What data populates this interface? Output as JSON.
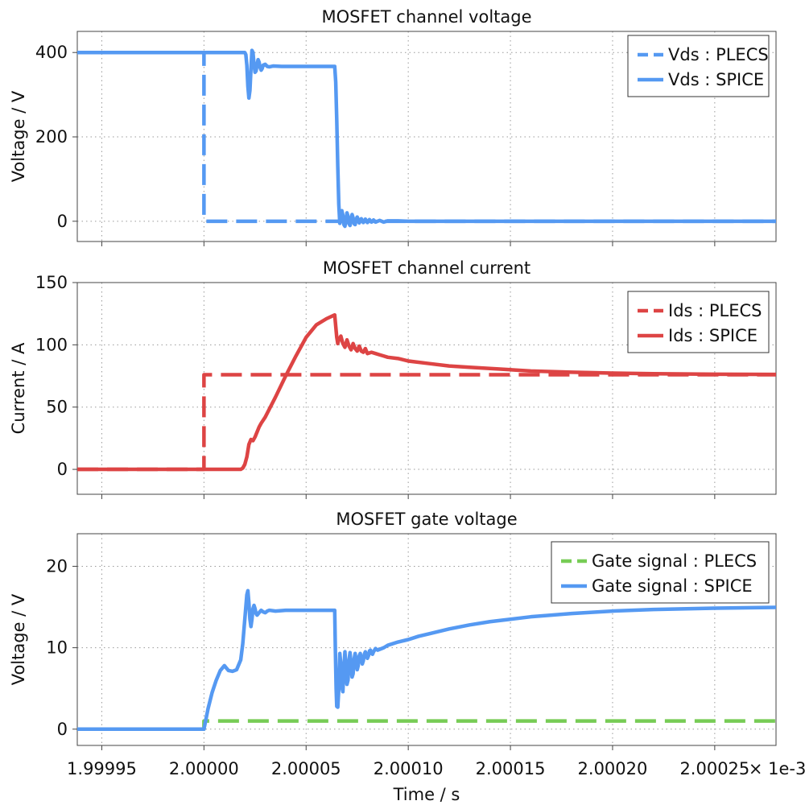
{
  "colors": {
    "blue": "#5599f2",
    "red": "#dd4444",
    "green": "#77cc55"
  },
  "xaxis": {
    "label": "Time / s",
    "range": [
      1.999938,
      2.00028
    ],
    "ticks": [
      1.99995,
      2.0,
      2.00005,
      2.0001,
      2.00015,
      2.0002,
      2.00025
    ],
    "tick_labels": [
      "1.99995",
      "2.00000",
      "2.00005",
      "2.00010",
      "2.00015",
      "2.00020",
      "2.00025"
    ],
    "scale_note": "× 1e-3"
  },
  "chart_data": [
    {
      "type": "line",
      "title": "MOSFET channel voltage",
      "ylabel": "Voltage / V",
      "ylim": [
        -48,
        450
      ],
      "yticks": [
        0,
        200,
        400
      ],
      "ytick_labels": [
        "0",
        "200",
        "400"
      ],
      "grid": true,
      "legend": "top-right",
      "series": [
        {
          "name": "Vds : PLECS",
          "color": "#5599f2",
          "dash": true,
          "x": [
            1.999938,
            2.0,
            2.0,
            2.00028
          ],
          "y": [
            400,
            400,
            0,
            0
          ]
        },
        {
          "name": "Vds : SPICE",
          "color": "#5599f2",
          "dash": false,
          "x": [
            1.999938,
            2.00002,
            2.0000205,
            2.000021,
            2.0000215,
            2.000022,
            2.0000225,
            2.000023,
            2.0000235,
            2.000024,
            2.0000245,
            2.000025,
            2.0000255,
            2.000026,
            2.0000265,
            2.000027,
            2.0000275,
            2.000028,
            2.0000285,
            2.000029,
            2.00003,
            2.000031,
            2.000032,
            2.000034,
            2.000038,
            2.000064,
            2.0000645,
            2.000065,
            2.0000655,
            2.000066,
            2.0000665,
            2.000067,
            2.0000675,
            2.000068,
            2.0000685,
            2.000069,
            2.0000695,
            2.00007,
            2.0000705,
            2.000071,
            2.0000715,
            2.000072,
            2.0000725,
            2.000073,
            2.0000735,
            2.000074,
            2.0000745,
            2.000075,
            2.0000755,
            2.000076,
            2.000077,
            2.000078,
            2.000079,
            2.00008,
            2.000081,
            2.000082,
            2.000083,
            2.000084,
            2.000086,
            2.000088,
            2.00009,
            2.000095,
            2.0001,
            2.00028
          ],
          "y": [
            400,
            400,
            395,
            370,
            320,
            292,
            310,
            360,
            405,
            400,
            372,
            353,
            356,
            372,
            383,
            377,
            364,
            358,
            362,
            370,
            372,
            367,
            366,
            368,
            367,
            367,
            330,
            240,
            130,
            40,
            -5,
            8,
            25,
            14,
            -8,
            -12,
            2,
            20,
            12,
            -6,
            -10,
            4,
            16,
            8,
            -6,
            -8,
            4,
            10,
            4,
            -4,
            6,
            -3,
            5,
            -3,
            4,
            -2,
            3,
            -2,
            2,
            -2,
            1,
            1,
            0,
            0
          ]
        }
      ]
    },
    {
      "type": "line",
      "title": "MOSFET channel current",
      "ylabel": "Current / A",
      "ylim": [
        -20,
        150
      ],
      "yticks": [
        0,
        50,
        100,
        150
      ],
      "ytick_labels": [
        "0",
        "50",
        "100",
        "150"
      ],
      "grid": true,
      "legend": "top-right",
      "series": [
        {
          "name": "Ids : PLECS",
          "color": "#dd4444",
          "dash": true,
          "x": [
            1.999938,
            2.0,
            2.0,
            2.00028
          ],
          "y": [
            0,
            0,
            76,
            76
          ]
        },
        {
          "name": "Ids : SPICE",
          "color": "#dd4444",
          "dash": false,
          "x": [
            1.999938,
            2.000018,
            2.000019,
            2.00002,
            2.000021,
            2.000022,
            2.000023,
            2.000024,
            2.000025,
            2.000026,
            2.000027,
            2.000028,
            2.00003,
            2.000035,
            2.00004,
            2.000045,
            2.00005,
            2.000055,
            2.00006,
            2.000064,
            2.0000645,
            2.000065,
            2.0000655,
            2.000066,
            2.000067,
            2.000068,
            2.000069,
            2.00007,
            2.000071,
            2.000072,
            2.000073,
            2.000074,
            2.000075,
            2.000076,
            2.000077,
            2.000078,
            2.000079,
            2.00008,
            2.000082,
            2.000084,
            2.000086,
            2.000088,
            2.00009,
            2.000095,
            2.0001,
            2.00011,
            2.00012,
            2.00013,
            2.00014,
            2.00015,
            2.00016,
            2.00017,
            2.00018,
            2.0002,
            2.00022,
            2.00025,
            2.00028
          ],
          "y": [
            0,
            0,
            1,
            4,
            10,
            20,
            24,
            23,
            26,
            30,
            34,
            37,
            42,
            58,
            75,
            91,
            106,
            116,
            121,
            124,
            115,
            106,
            101,
            104,
            107,
            101,
            98,
            104,
            99,
            96,
            101,
            97,
            95,
            99,
            95,
            94,
            97,
            93,
            94,
            93,
            92,
            91,
            90,
            89,
            87,
            85,
            83,
            82,
            81,
            80,
            79,
            78.5,
            78,
            77.3,
            76.8,
            76.4,
            76.2
          ]
        }
      ]
    },
    {
      "type": "line",
      "title": "MOSFET gate voltage",
      "ylabel": "Voltage / V",
      "ylim": [
        -2,
        24
      ],
      "yticks": [
        0,
        10,
        20
      ],
      "ytick_labels": [
        "0",
        "10",
        "20"
      ],
      "grid": true,
      "legend": "top-right",
      "series": [
        {
          "name": "Gate signal : PLECS",
          "color": "#77cc55",
          "dash": true,
          "x": [
            1.999938,
            2.0,
            2.0,
            2.00028
          ],
          "y": [
            0,
            0,
            1,
            1
          ]
        },
        {
          "name": "Gate signal : SPICE",
          "color": "#5599f2",
          "dash": false,
          "x": [
            1.999938,
            2.0,
            2.000002,
            2.000004,
            2.000006,
            2.000008,
            2.00001,
            2.000011,
            2.000012,
            2.000014,
            2.000016,
            2.000018,
            2.000019,
            2.00002,
            2.000021,
            2.0000215,
            2.000022,
            2.0000225,
            2.000023,
            2.0000235,
            2.000024,
            2.0000245,
            2.000025,
            2.0000255,
            2.000026,
            2.000027,
            2.000028,
            2.000029,
            2.00003,
            2.000031,
            2.000032,
            2.000035,
            2.00004,
            2.00005,
            2.000064,
            2.0000643,
            2.0000647,
            2.000065,
            2.0000655,
            2.000066,
            2.0000665,
            2.000067,
            2.0000675,
            2.000068,
            2.0000685,
            2.000069,
            2.0000695,
            2.00007,
            2.0000705,
            2.000071,
            2.0000715,
            2.000072,
            2.0000725,
            2.000073,
            2.0000735,
            2.000074,
            2.0000745,
            2.000075,
            2.0000755,
            2.000076,
            2.0000765,
            2.000077,
            2.0000775,
            2.000078,
            2.0000785,
            2.000079,
            2.0000795,
            2.00008,
            2.0000805,
            2.000081,
            2.0000815,
            2.000082,
            2.0000825,
            2.000083,
            2.000084,
            2.000085,
            2.000086,
            2.000088,
            2.00009,
            2.000095,
            2.0001,
            2.000105,
            2.00011,
            2.00012,
            2.00013,
            2.00014,
            2.00015,
            2.00016,
            2.00018,
            2.0002,
            2.00022,
            2.00025,
            2.00028
          ],
          "y": [
            0,
            0,
            2.5,
            4.5,
            6.0,
            7.2,
            7.8,
            7.5,
            7.2,
            7.1,
            7.3,
            8.5,
            10.5,
            13.5,
            16.5,
            17.0,
            15.5,
            13.5,
            12.6,
            13.5,
            14.8,
            15.2,
            14.8,
            14.2,
            14.0,
            14.3,
            14.6,
            14.4,
            14.3,
            14.5,
            14.6,
            14.5,
            14.6,
            14.6,
            14.6,
            10.0,
            5.0,
            2.8,
            2.7,
            5.0,
            9.3,
            8.0,
            5.2,
            4.6,
            7.5,
            9.5,
            7.5,
            5.5,
            6.0,
            8.5,
            9.4,
            8.0,
            6.4,
            6.8,
            8.6,
            9.3,
            8.4,
            7.3,
            7.8,
            9.0,
            9.3,
            8.6,
            8.0,
            8.4,
            9.2,
            9.5,
            9.0,
            8.7,
            9.0,
            9.6,
            9.7,
            9.3,
            9.2,
            9.5,
            9.9,
            9.7,
            9.8,
            10.0,
            10.3,
            10.7,
            11.0,
            11.4,
            11.7,
            12.3,
            12.8,
            13.2,
            13.5,
            13.8,
            14.2,
            14.5,
            14.7,
            14.85,
            14.95
          ]
        }
      ]
    }
  ]
}
